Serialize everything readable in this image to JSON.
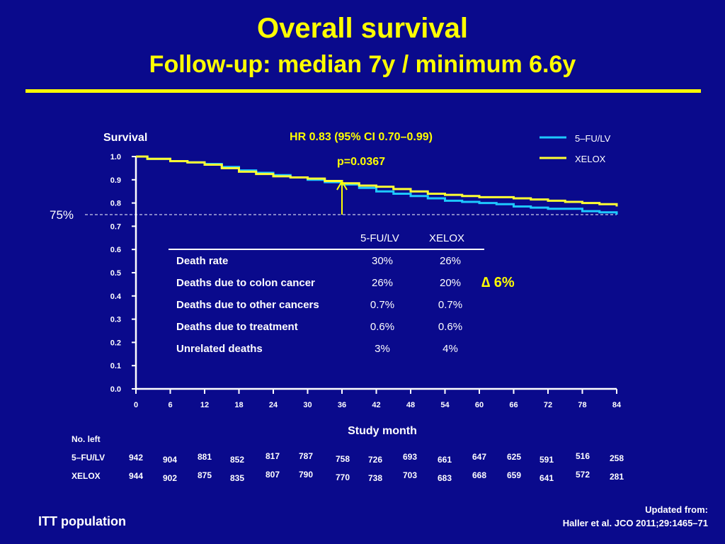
{
  "title": "Overall survival",
  "subtitle": "Follow-up: median 7y / minimum 6.6y",
  "colors": {
    "background": "#0a0a8c",
    "title": "#ffff00",
    "fu_lv": "#1ec8ff",
    "xelox": "#ffff33",
    "text": "#ffffff"
  },
  "chart_data": {
    "type": "line",
    "ylabel": "Survival",
    "xlabel": "Study month",
    "xlim": [
      0,
      84
    ],
    "ylim": [
      0,
      1.0
    ],
    "x_ticks": [
      0,
      6,
      12,
      18,
      24,
      30,
      36,
      42,
      48,
      54,
      60,
      66,
      72,
      78,
      84
    ],
    "y_ticks": [
      "0.0",
      "0.1",
      "0.2",
      "0.3",
      "0.4",
      "0.5",
      "0.6",
      "0.7",
      "0.8",
      "0.9",
      "1.0"
    ],
    "hr_text": "HR 0.83 (95% CI 0.70–0.99)",
    "p_text": "p=0.0367",
    "reference_line": {
      "y": 0.75,
      "label": "75%"
    },
    "arrow_at_month": 36,
    "legend_position": "top-right",
    "series": [
      {
        "name": "5–FU/LV",
        "color": "#1ec8ff",
        "x": [
          0,
          2,
          6,
          9,
          12,
          15,
          18,
          21,
          24,
          27,
          30,
          33,
          36,
          39,
          42,
          45,
          48,
          51,
          54,
          57,
          60,
          63,
          66,
          69,
          72,
          75,
          78,
          81,
          84
        ],
        "y": [
          1.0,
          0.99,
          0.98,
          0.975,
          0.968,
          0.955,
          0.94,
          0.93,
          0.92,
          0.91,
          0.9,
          0.89,
          0.88,
          0.865,
          0.85,
          0.84,
          0.83,
          0.82,
          0.81,
          0.805,
          0.8,
          0.795,
          0.785,
          0.78,
          0.775,
          0.775,
          0.765,
          0.76,
          0.75
        ]
      },
      {
        "name": "XELOX",
        "color": "#ffff33",
        "x": [
          0,
          2,
          6,
          9,
          12,
          15,
          18,
          21,
          24,
          27,
          30,
          33,
          36,
          39,
          42,
          45,
          48,
          51,
          54,
          57,
          60,
          63,
          66,
          69,
          72,
          75,
          78,
          81,
          84
        ],
        "y": [
          1.0,
          0.99,
          0.98,
          0.975,
          0.965,
          0.95,
          0.935,
          0.925,
          0.915,
          0.91,
          0.905,
          0.895,
          0.885,
          0.875,
          0.87,
          0.86,
          0.85,
          0.84,
          0.835,
          0.83,
          0.825,
          0.825,
          0.82,
          0.815,
          0.81,
          0.805,
          0.8,
          0.795,
          0.785
        ]
      }
    ],
    "at_risk": {
      "label": "No. left",
      "rows": [
        {
          "name": "5–FU/LV",
          "values": [
            "942",
            "904",
            "881",
            "852",
            "817",
            "787",
            "758",
            "726",
            "693",
            "661",
            "647",
            "625",
            "591",
            "516",
            "258"
          ]
        },
        {
          "name": "XELOX",
          "values": [
            "944",
            "902",
            "875",
            "835",
            "807",
            "790",
            "770",
            "738",
            "703",
            "683",
            "668",
            "659",
            "641",
            "572",
            "281"
          ]
        }
      ]
    }
  },
  "table": {
    "headers": [
      "5-FU/LV",
      "XELOX"
    ],
    "rows": [
      {
        "label": "Death rate",
        "a": "30%",
        "b": "26%"
      },
      {
        "label": "Deaths due to colon cancer",
        "a": "26%",
        "b": "20%"
      },
      {
        "label": "Deaths due to other cancers",
        "a": "0.7%",
        "b": "0.7%"
      },
      {
        "label": "Deaths due to treatment",
        "a": "0.6%",
        "b": "0.6%"
      },
      {
        "label": "Unrelated deaths",
        "a": "3%",
        "b": "4%"
      }
    ],
    "delta_label": "∆ 6%"
  },
  "footer": {
    "population": "ITT population",
    "source_line1": "Updated from:",
    "source_line2": "Haller et al. JCO 2011;29:1465–71"
  }
}
